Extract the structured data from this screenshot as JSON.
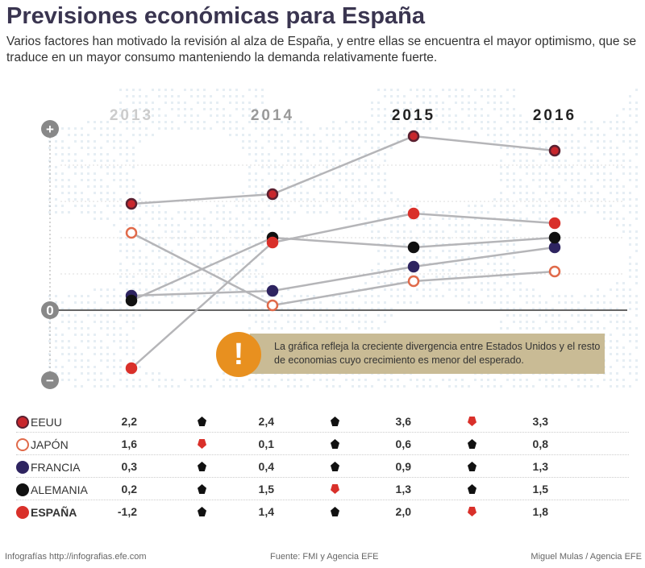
{
  "header": {
    "title": "Previsiones económicas para España",
    "subtitle": "Varios factores han motivado la revisión al alza de España, y entre ellas se encuentra el mayor optimismo, que se traduce en un mayor consumo manteniendo la demanda relativamente fuerte."
  },
  "chart_data": {
    "type": "line",
    "title": "Previsiones económicas para España",
    "x": [
      "2013",
      "2014",
      "2015",
      "2016"
    ],
    "axis_labels": {
      "plus": "+",
      "zero": "0",
      "minus": "−"
    },
    "series": [
      {
        "name": "EEUU",
        "values": [
          2.2,
          2.4,
          3.6,
          3.3
        ],
        "color": "#c8262c",
        "fill": "#c8262c",
        "ring": "#5a2030",
        "bold": false,
        "arrows": [
          "up",
          "up",
          "down"
        ]
      },
      {
        "name": "JAPÓN",
        "values": [
          1.6,
          0.1,
          0.6,
          0.8
        ],
        "color": "#e06a4a",
        "fill": "#ffffff",
        "ring": "#e06a4a",
        "bold": false,
        "arrows": [
          "down",
          "up",
          "up"
        ]
      },
      {
        "name": "FRANCIA",
        "values": [
          0.3,
          0.4,
          0.9,
          1.3
        ],
        "color": "#2e2460",
        "fill": "#2e2460",
        "ring": "#2e2460",
        "bold": false,
        "arrows": [
          "up",
          "up",
          "up"
        ]
      },
      {
        "name": "ALEMANIA",
        "values": [
          0.2,
          1.5,
          1.3,
          1.5
        ],
        "color": "#111111",
        "fill": "#111111",
        "ring": "#111111",
        "bold": false,
        "arrows": [
          "up",
          "down",
          "up"
        ]
      },
      {
        "name": "ESPAÑA",
        "values": [
          -1.2,
          1.4,
          2.0,
          1.8
        ],
        "color": "#d9302a",
        "fill": "#d9302a",
        "ring": "#d9302a",
        "bold": true,
        "arrows": [
          "up",
          "up",
          "down"
        ]
      }
    ],
    "display_values": [
      [
        "2,2",
        "2,4",
        "3,6",
        "3,3"
      ],
      [
        "1,6",
        "0,1",
        "0,6",
        "0,8"
      ],
      [
        "0,3",
        "0,4",
        "0,9",
        "1,3"
      ],
      [
        "0,2",
        "1,5",
        "1,3",
        "1,5"
      ],
      [
        "-1,2",
        "1,4",
        "2,0",
        "1,8"
      ]
    ],
    "ylim": [
      -1.5,
      4
    ]
  },
  "note": {
    "text": "La gráfica refleja la creciente divergencia entre Estados Unidos y el resto de economias cuyo crecimiento es menor del esperado.",
    "icon": "!"
  },
  "colors": {
    "up": "#111111",
    "down": "#d9302a",
    "note_bg": "#c9bb95",
    "warn": "#e8901f"
  },
  "footer": {
    "left": "Infografías http://infografias.efe.com",
    "center": "Fuente: FMI y Agencia EFE",
    "right": "Miguel Mulas / Agencia EFE"
  }
}
